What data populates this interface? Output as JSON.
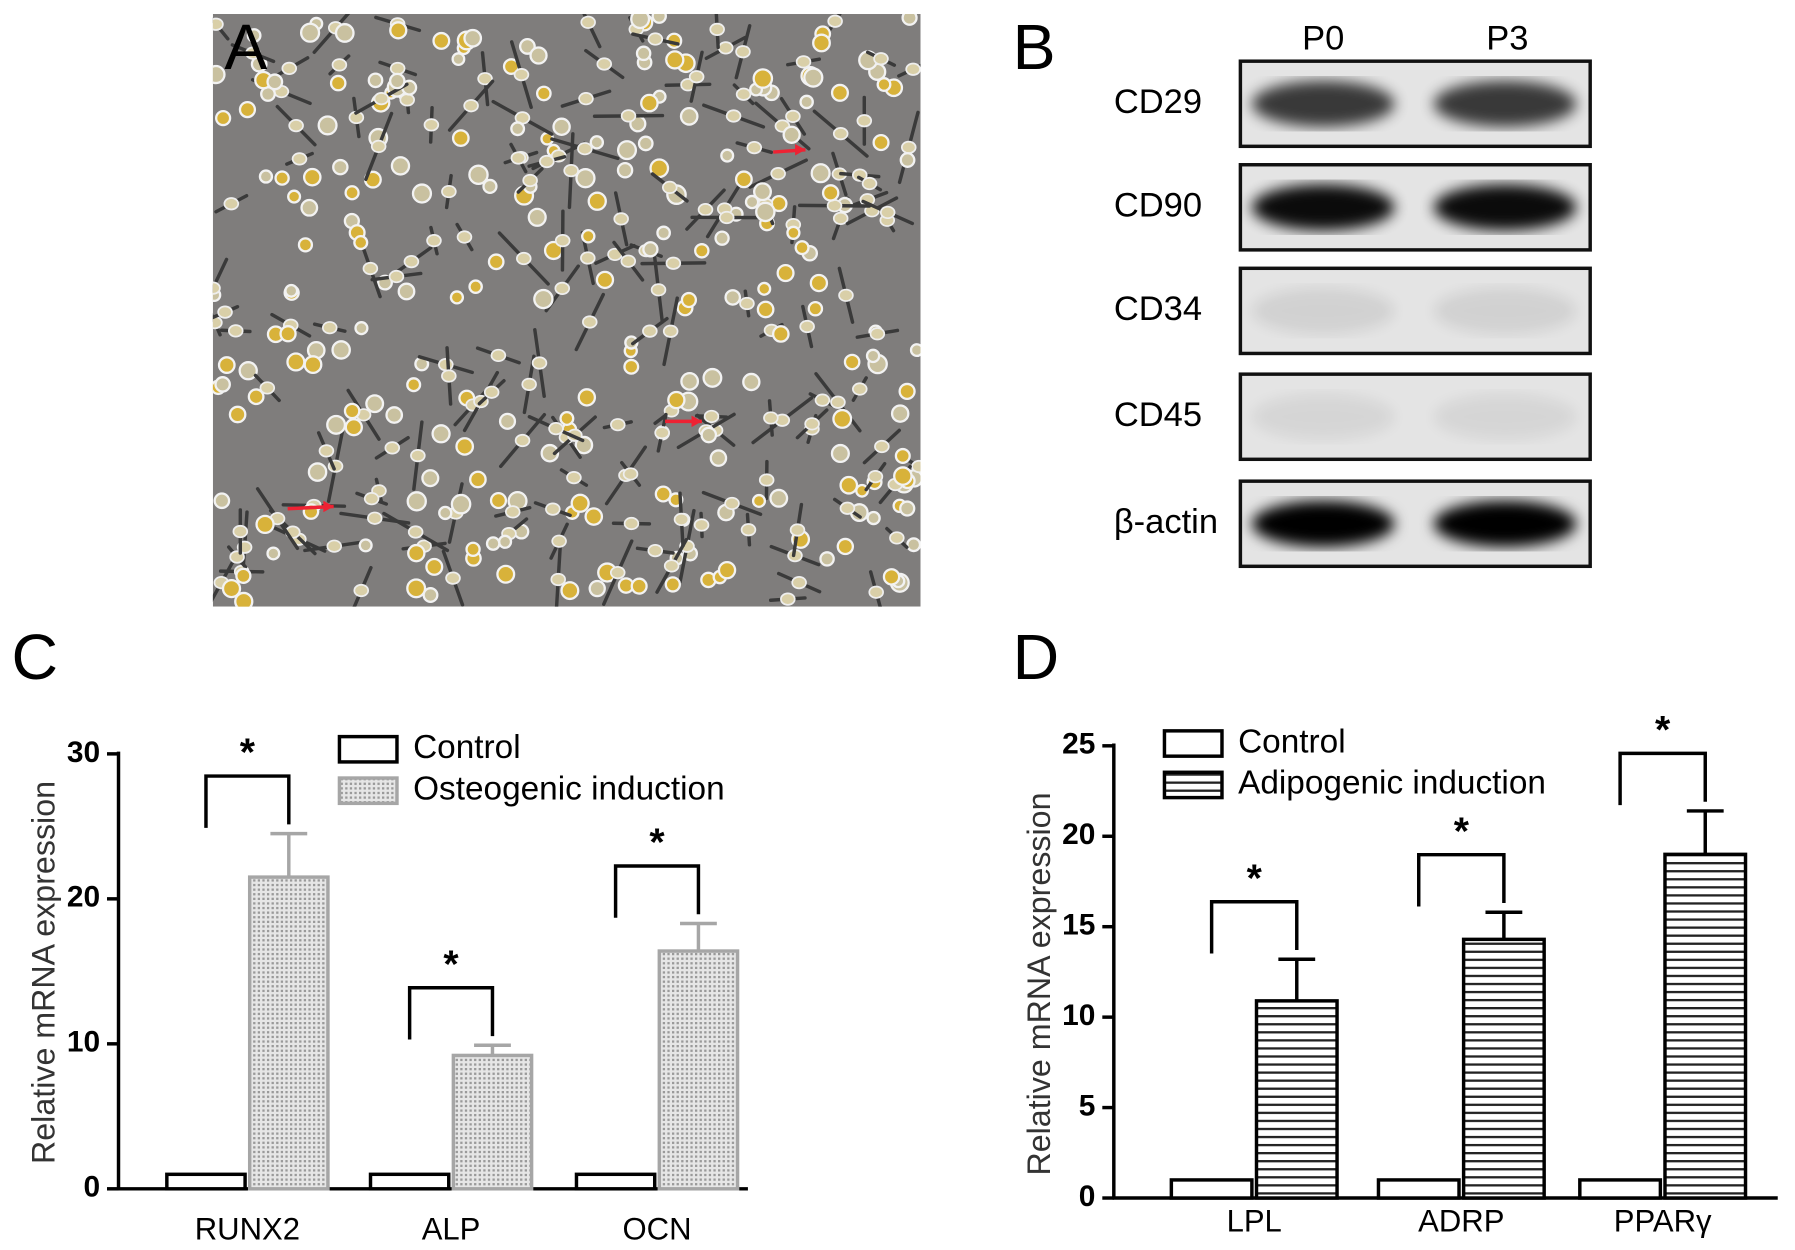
{
  "panel_labels": [
    "A",
    "B",
    "C",
    "D"
  ],
  "blot": {
    "columns": [
      "P0",
      "P3"
    ],
    "rows": [
      "CD29",
      "CD90",
      "CD34",
      "CD45",
      "β-actin"
    ]
  },
  "chart_data": [
    {
      "type": "bar",
      "ylabel": "Relative mRNA expression",
      "categories": [
        "RUNX2",
        "ALP",
        "OCN"
      ],
      "series": [
        {
          "name": "Control",
          "color": "#ffffff",
          "edgecolor": "#000000",
          "values": [
            1,
            1,
            1
          ]
        },
        {
          "name": "Osteogenic induction",
          "color": "#d9d9d9",
          "edgecolor": "#a6a6a6",
          "pattern": "dots",
          "values": [
            21.5,
            9.2,
            16.4
          ],
          "errors": [
            3.0,
            0.7,
            1.9
          ]
        }
      ],
      "significance": [
        "*",
        "*",
        "*"
      ],
      "ylim": [
        0,
        30
      ],
      "yticks": [
        0,
        10,
        20,
        30
      ]
    },
    {
      "type": "bar",
      "ylabel": "Relative mRNA expression",
      "categories": [
        "LPL",
        "ADRP",
        "PPARγ"
      ],
      "series": [
        {
          "name": "Control",
          "color": "#ffffff",
          "edgecolor": "#000000",
          "values": [
            1,
            1,
            1
          ]
        },
        {
          "name": "Adipogenic induction",
          "color": "#ffffff",
          "edgecolor": "#000000",
          "pattern": "stripes",
          "values": [
            10.9,
            14.3,
            19.0
          ],
          "errors": [
            2.3,
            1.5,
            2.4
          ]
        }
      ],
      "significance": [
        "*",
        "*",
        "*"
      ],
      "ylim": [
        0,
        25
      ],
      "yticks": [
        0,
        5,
        10,
        15,
        20,
        25
      ]
    }
  ]
}
